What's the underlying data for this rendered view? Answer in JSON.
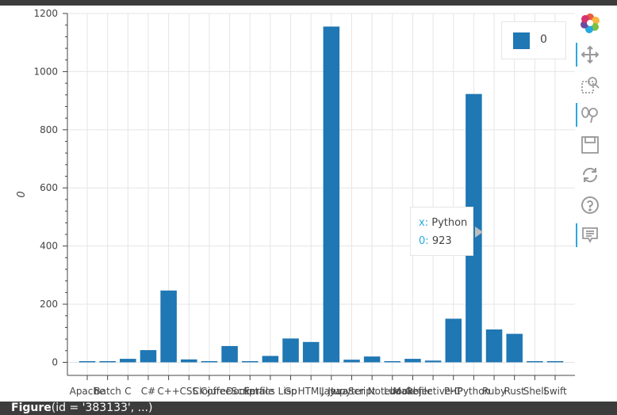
{
  "chart_data": {
    "type": "bar",
    "categories": [
      "Apache",
      "Batch",
      "C",
      "C#",
      "C++",
      "CSS",
      "Clojure",
      "CoffeeScript",
      "Dockerfile",
      "Emacs Lisp",
      "Go",
      "HTML",
      "Java",
      "JavaScript",
      "Jupyter Notebook",
      "Lua",
      "Makefile",
      "Objective-C",
      "PHP",
      "Python",
      "Ruby",
      "Rust",
      "Shell",
      "Swift"
    ],
    "series": [
      {
        "name": "0",
        "values": [
          2,
          2,
          12,
          42,
          247,
          10,
          4,
          56,
          4,
          22,
          82,
          70,
          1155,
          9,
          20,
          2,
          12,
          6,
          150,
          923,
          113,
          98,
          2,
          0
        ]
      }
    ],
    "color": "#1f77b4",
    "xlabel": "",
    "ylabel": "0",
    "ylim": [
      -45,
      1200
    ],
    "yticks": [
      0,
      200,
      400,
      600,
      800,
      1000,
      1200
    ],
    "grid": true,
    "legend": "top-right"
  },
  "legend": {
    "label": "0"
  },
  "tooltip": {
    "x_key": "x",
    "x_value": "Python",
    "y_key": "0",
    "y_value": "923"
  },
  "toolbar": {
    "tools": [
      "bokeh-logo-icon",
      "pan-icon",
      "box-zoom-icon",
      "wheel-zoom-icon",
      "save-icon",
      "reset-icon",
      "help-icon",
      "hover-icon"
    ]
  },
  "caption": {
    "prefix": "Figure",
    "text": "(id = '383133', ...)"
  }
}
